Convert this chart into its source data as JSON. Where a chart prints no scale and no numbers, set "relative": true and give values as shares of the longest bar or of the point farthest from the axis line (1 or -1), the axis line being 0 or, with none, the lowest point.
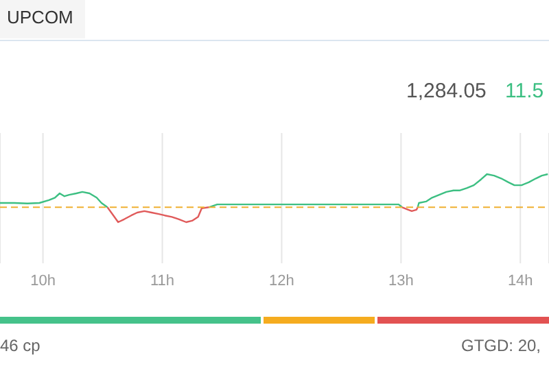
{
  "chart_data": {
    "type": "line",
    "relative": true,
    "x": [
      9.64,
      9.76,
      9.87,
      9.97,
      10.05,
      10.1,
      10.14,
      10.18,
      10.22,
      10.28,
      10.33,
      10.39,
      10.45,
      10.49,
      10.54,
      10.59,
      10.63,
      10.68,
      10.74,
      10.79,
      10.85,
      10.91,
      10.97,
      11.02,
      11.08,
      11.14,
      11.2,
      11.25,
      11.3,
      11.33,
      11.39,
      11.46,
      11.51,
      11.94,
      12.98,
      13.01,
      13.06,
      13.09,
      13.13,
      13.14,
      13.15,
      13.21,
      13.26,
      13.32,
      13.38,
      13.44,
      13.49,
      13.55,
      13.61,
      13.67,
      13.72,
      13.78,
      13.84,
      13.9,
      13.95,
      14.01,
      14.07,
      14.13,
      14.18,
      14.23
    ],
    "series": [
      {
        "color": "#3cbf82",
        "values": [
          0.4,
          0.4,
          0.39,
          0.4,
          0.46,
          0.51,
          0.6,
          0.54,
          0.57,
          0.6,
          0.63,
          0.6,
          0.51,
          0.4,
          0.31,
          null,
          null,
          null,
          null,
          null,
          null,
          null,
          null,
          null,
          null,
          null,
          null,
          null,
          null,
          null,
          0.31,
          0.37,
          0.37,
          0.37,
          0.37,
          0.31,
          null,
          null,
          null,
          0.31,
          0.4,
          0.43,
          0.51,
          0.57,
          0.63,
          0.66,
          0.66,
          0.71,
          0.77,
          0.89,
          1,
          0.97,
          0.91,
          0.83,
          0.77,
          0.77,
          0.83,
          0.91,
          0.97,
          1
        ]
      },
      {
        "color": "#e05a5a",
        "values": [
          null,
          null,
          null,
          null,
          null,
          null,
          null,
          null,
          null,
          null,
          null,
          null,
          null,
          null,
          0.31,
          0.14,
          0,
          0.06,
          0.14,
          0.2,
          0.23,
          0.2,
          0.17,
          0.14,
          0.11,
          0.06,
          0,
          0.03,
          0.11,
          0.29,
          0.31,
          null,
          null,
          null,
          null,
          null,
          null,
          null,
          null,
          null,
          null,
          null,
          null,
          null,
          null,
          null,
          null,
          null,
          null,
          null,
          null,
          null,
          null,
          null,
          null,
          null,
          null,
          null,
          null,
          null
        ]
      },
      {
        "color": "#e05a5a",
        "values": [
          null,
          null,
          null,
          null,
          null,
          null,
          null,
          null,
          null,
          null,
          null,
          null,
          null,
          null,
          null,
          null,
          null,
          null,
          null,
          null,
          null,
          null,
          null,
          null,
          null,
          null,
          null,
          null,
          null,
          null,
          null,
          null,
          null,
          null,
          null,
          0.31,
          0.26,
          0.23,
          0.26,
          0.31,
          null,
          null,
          null,
          null,
          null,
          null,
          null,
          null,
          null,
          null,
          null,
          null,
          null,
          null,
          null,
          null,
          null,
          null,
          null,
          null
        ]
      }
    ],
    "xlim": [
      9.64,
      14.24
    ],
    "xticks": [
      {
        "value": 10,
        "label": "10h"
      },
      {
        "value": 11,
        "label": "11h"
      },
      {
        "value": 12,
        "label": "12h"
      },
      {
        "value": 13,
        "label": "13h"
      },
      {
        "value": 14,
        "label": "14h"
      }
    ],
    "ref_lines": [
      {
        "axis": "y",
        "value": 0.31,
        "color": "#f0b030",
        "line_style": "dashed"
      }
    ],
    "grid": "x",
    "annotations": [
      "UPCOM",
      "1,284.05",
      "11.5",
      "46 cp",
      "GTGD: 20,"
    ]
  }
}
